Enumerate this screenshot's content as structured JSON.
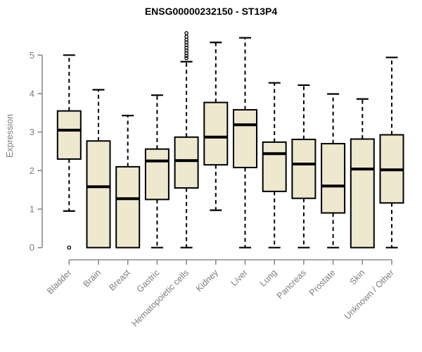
{
  "chart_data": {
    "type": "boxplot",
    "title": "ENSG00000232150 - ST13P4",
    "xlabel": "",
    "ylabel": "Expression",
    "ylim": [
      0,
      5
    ],
    "yticks": [
      0,
      1,
      2,
      3,
      4,
      5
    ],
    "grid": false,
    "legend": null,
    "categories": [
      "Bladder",
      "Brain",
      "Breast",
      "Gastric",
      "Hematopoietic cells",
      "Kidney",
      "Liver",
      "Lung",
      "Pancreas",
      "Prostate",
      "Skin",
      "Unknown / Other"
    ],
    "series": [
      {
        "name": "Bladder",
        "low": 0.95,
        "q1": 2.3,
        "median": 3.05,
        "q3": 3.55,
        "high": 5.0,
        "outliers": [
          0
        ]
      },
      {
        "name": "Brain",
        "low": 0.0,
        "q1": 0.0,
        "median": 1.58,
        "q3": 2.77,
        "high": 4.1,
        "outliers": []
      },
      {
        "name": "Breast",
        "low": 0.0,
        "q1": 0.0,
        "median": 1.27,
        "q3": 2.1,
        "high": 3.43,
        "outliers": []
      },
      {
        "name": "Gastric",
        "low": 0.0,
        "q1": 1.25,
        "median": 2.25,
        "q3": 2.56,
        "high": 3.96,
        "outliers": []
      },
      {
        "name": "Hematopoietic cells",
        "low": 0.0,
        "q1": 1.55,
        "median": 2.26,
        "q3": 2.87,
        "high": 4.83,
        "outliers": [
          4.92,
          4.98,
          5.05,
          5.12,
          5.19,
          5.26,
          5.33,
          5.4,
          5.48,
          5.57
        ]
      },
      {
        "name": "Kidney",
        "low": 0.97,
        "q1": 2.15,
        "median": 2.87,
        "q3": 3.77,
        "high": 5.33,
        "outliers": []
      },
      {
        "name": "Liver",
        "low": 0.0,
        "q1": 2.08,
        "median": 3.19,
        "q3": 3.58,
        "high": 5.45,
        "outliers": []
      },
      {
        "name": "Lung",
        "low": 0.0,
        "q1": 1.46,
        "median": 2.44,
        "q3": 2.74,
        "high": 4.28,
        "outliers": []
      },
      {
        "name": "Pancreas",
        "low": 0.0,
        "q1": 1.28,
        "median": 2.17,
        "q3": 2.81,
        "high": 4.22,
        "outliers": []
      },
      {
        "name": "Prostate",
        "low": 0.0,
        "q1": 0.9,
        "median": 1.6,
        "q3": 2.7,
        "high": 3.99,
        "outliers": []
      },
      {
        "name": "Skin",
        "low": 0.0,
        "q1": 0.0,
        "median": 2.04,
        "q3": 2.82,
        "high": 3.86,
        "outliers": []
      },
      {
        "name": "Unknown / Other",
        "low": 0.0,
        "q1": 1.16,
        "median": 2.02,
        "q3": 2.93,
        "high": 4.94,
        "outliers": []
      }
    ],
    "colors": {
      "box_fill": "#ede8ce",
      "box_border": "#000000",
      "median": "#000000",
      "whisker": "#000000",
      "axis_line": "#8a8a8a",
      "axis_text": "#7d7d7d",
      "title": "#000000"
    }
  }
}
